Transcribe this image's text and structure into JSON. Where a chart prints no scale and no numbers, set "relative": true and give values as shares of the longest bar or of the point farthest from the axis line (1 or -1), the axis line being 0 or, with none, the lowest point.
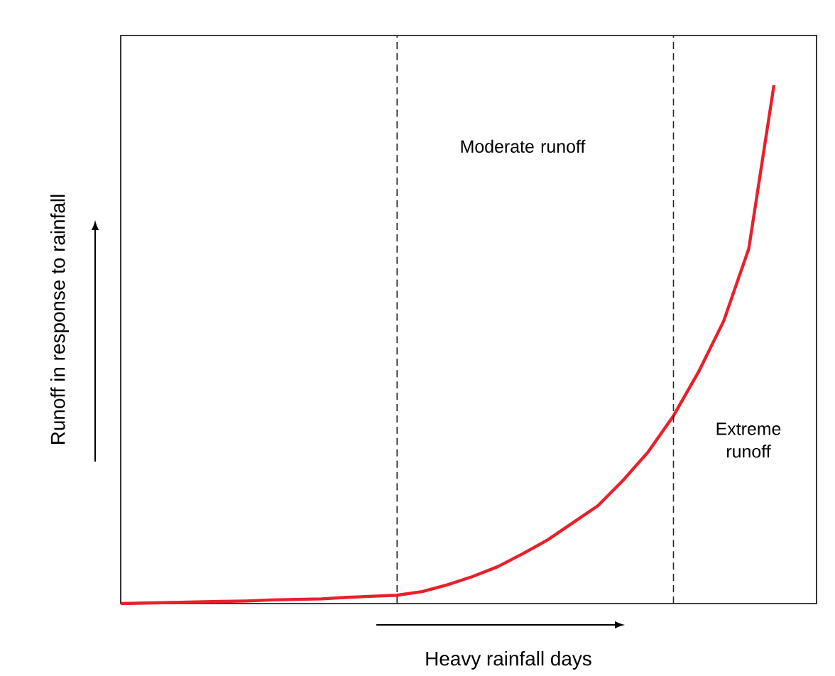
{
  "chart_data": {
    "type": "line",
    "relative": true,
    "xlabel": "Heavy rainfall days",
    "ylabel": "Runoff in response to rainfall",
    "categories": [
      null,
      null,
      null,
      null,
      null,
      null,
      null,
      null,
      null,
      null,
      null,
      null,
      null,
      null,
      null,
      null,
      null,
      null,
      null,
      null,
      null,
      null,
      null,
      null,
      null,
      null,
      null
    ],
    "tick_labels": false,
    "marker": "none",
    "line_style": "solid",
    "series": [
      {
        "color": "#e8202a",
        "values": [
          0,
          0.001,
          0.002,
          0.003,
          0.004,
          0.005,
          0.007,
          0.008,
          0.009,
          0.012,
          0.014,
          0.016,
          0.023,
          0.036,
          0.052,
          0.071,
          0.096,
          0.123,
          0.156,
          0.189,
          0.238,
          0.293,
          0.362,
          0.447,
          0.545,
          0.685,
          1
        ]
      }
    ],
    "annotations": [
      "Moderate runoff",
      "Extreme runoff"
    ]
  }
}
